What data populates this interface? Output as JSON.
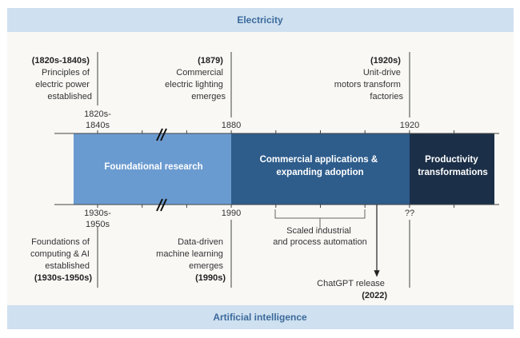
{
  "header": {
    "title": "Electricity"
  },
  "footer": {
    "title": "Artificial intelligence"
  },
  "colors": {
    "band_bg": "#cfe0f0",
    "band_text": "#3b6a9b",
    "foundational": "#6a9bd0",
    "commercial": "#2e5d8c",
    "productivity": "#1b2f48",
    "background": "#f9f8f5"
  },
  "segments": [
    {
      "label": "Foundational research"
    },
    {
      "label_lines": [
        "Commercial applications &",
        "expanding adoption"
      ]
    },
    {
      "label_lines": [
        "Productivity",
        "transformations"
      ]
    }
  ],
  "top_axis": {
    "ticks": [
      [
        "1820s-",
        "1840s"
      ],
      [
        "1880"
      ],
      [
        "1920"
      ]
    ]
  },
  "bottom_axis": {
    "ticks": [
      [
        "1930s-",
        "1950s"
      ],
      [
        "1990"
      ],
      [
        "??"
      ]
    ]
  },
  "electricity_events": [
    {
      "date": "(1820s-1840s)",
      "lines": [
        "Principles of",
        "electric power",
        "established"
      ]
    },
    {
      "date": "(1879)",
      "lines": [
        "Commercial",
        "electric lighting",
        "emerges"
      ]
    },
    {
      "date": "(1920s)",
      "lines": [
        "Unit-drive",
        "motors transform",
        "factories"
      ]
    }
  ],
  "ai_events": [
    {
      "date": "(1930s-1950s)",
      "lines": [
        "Foundations of",
        "computing & AI",
        "established"
      ]
    },
    {
      "date": "(1990s)",
      "lines": [
        "Data-driven",
        "machine learning",
        "emerges"
      ]
    }
  ],
  "bracket": {
    "lines": [
      "Scaled industrial",
      "and process automation"
    ]
  },
  "chatgpt": {
    "label": "ChatGPT release",
    "date": "(2022)"
  }
}
